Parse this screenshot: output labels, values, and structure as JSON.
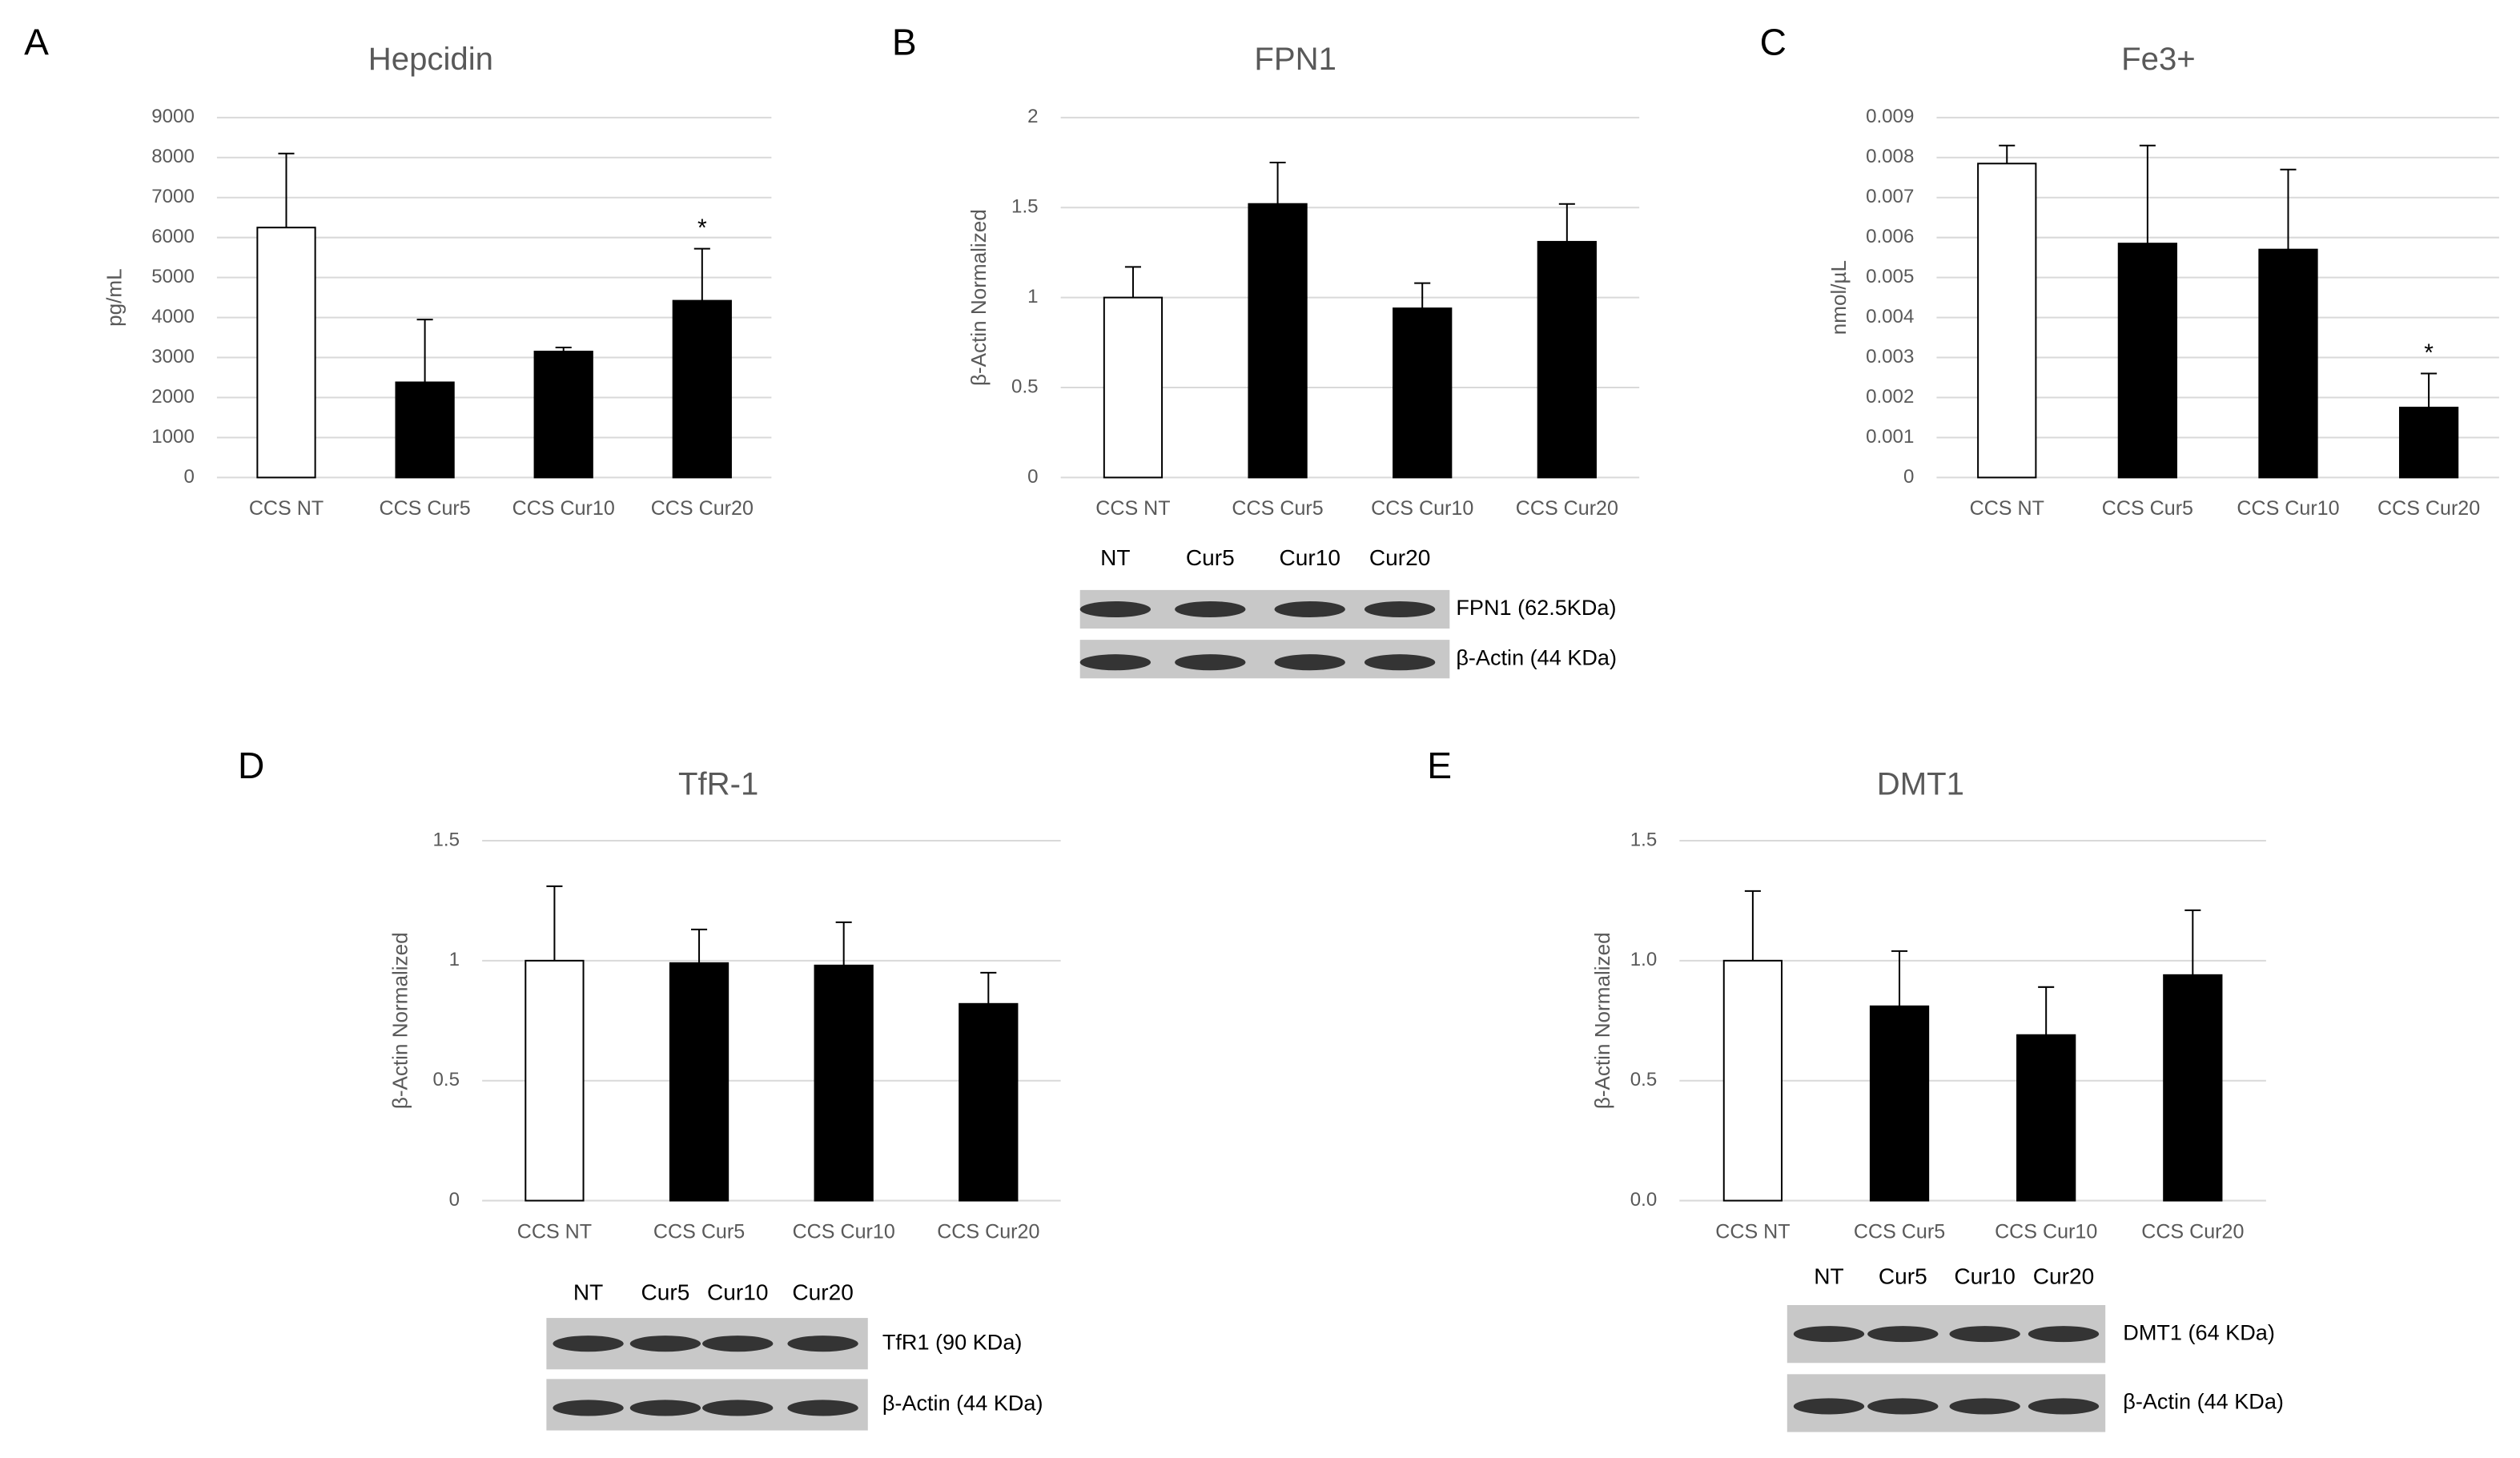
{
  "chart_data": [
    {
      "type": "bar",
      "panel": "A",
      "title": "Hepcidin",
      "ylabel": "pg/mL",
      "categories": [
        "CCS NT",
        "CCS Cur5",
        "CCS Cur10",
        "CCS Cur20"
      ],
      "values": [
        6250,
        2380,
        3150,
        4420
      ],
      "errors": [
        1850,
        1570,
        100,
        1300
      ],
      "colors": [
        "#ffffff",
        "#000000",
        "#000000",
        "#000000"
      ],
      "significance": [
        null,
        null,
        null,
        "*"
      ],
      "ylim": [
        0,
        9000
      ],
      "yticks": [
        0,
        1000,
        2000,
        3000,
        4000,
        5000,
        6000,
        7000,
        8000,
        9000
      ],
      "grid": true
    },
    {
      "type": "bar",
      "panel": "B",
      "title": "FPN1",
      "ylabel": "β-Actin Normalized",
      "categories": [
        "CCS NT",
        "CCS Cur5",
        "CCS Cur10",
        "CCS Cur20"
      ],
      "values": [
        1.0,
        1.52,
        0.94,
        1.31
      ],
      "errors": [
        0.17,
        0.23,
        0.14,
        0.21
      ],
      "colors": [
        "#ffffff",
        "#000000",
        "#000000",
        "#000000"
      ],
      "ylim": [
        0,
        2
      ],
      "yticks": [
        0,
        0.5,
        1,
        1.5,
        2
      ],
      "grid": true,
      "blot": {
        "lanes": [
          "NT",
          "Cur5",
          "Cur10",
          "Cur20"
        ],
        "bands": [
          "FPN1 (62.5KDa)",
          "β-Actin (44 KDa)"
        ]
      }
    },
    {
      "type": "bar",
      "panel": "C",
      "title": "Fe3+",
      "ylabel": "nmol/µL",
      "categories": [
        "CCS NT",
        "CCS Cur5",
        "CCS Cur10",
        "CCS Cur20"
      ],
      "values": [
        0.00785,
        0.00585,
        0.0057,
        0.00175
      ],
      "errors": [
        0.00045,
        0.00245,
        0.002,
        0.00085
      ],
      "colors": [
        "#ffffff",
        "#000000",
        "#000000",
        "#000000"
      ],
      "significance": [
        null,
        null,
        null,
        "*"
      ],
      "ylim": [
        0,
        0.009
      ],
      "yticks": [
        0,
        0.001,
        0.002,
        0.003,
        0.004,
        0.005,
        0.006,
        0.007,
        0.008,
        0.009
      ],
      "grid": true
    },
    {
      "type": "bar",
      "panel": "D",
      "title": "TfR-1",
      "ylabel": "β-Actin Normalized",
      "categories": [
        "CCS NT",
        "CCS Cur5",
        "CCS Cur10",
        "CCS Cur20"
      ],
      "values": [
        1.0,
        0.99,
        0.98,
        0.82
      ],
      "errors": [
        0.31,
        0.14,
        0.18,
        0.13
      ],
      "colors": [
        "#ffffff",
        "#000000",
        "#000000",
        "#000000"
      ],
      "ylim": [
        0,
        1.5
      ],
      "yticks": [
        0,
        0.5,
        1,
        1.5
      ],
      "grid": true,
      "blot": {
        "lanes": [
          "NT",
          "Cur5",
          "Cur10",
          "Cur20"
        ],
        "bands": [
          "TfR1 (90 KDa)",
          "β-Actin (44 KDa)"
        ]
      }
    },
    {
      "type": "bar",
      "panel": "E",
      "title": "DMT1",
      "ylabel": "β-Actin Normalized",
      "categories": [
        "CCS NT",
        "CCS Cur5",
        "CCS Cur10",
        "CCS Cur20"
      ],
      "values": [
        1.0,
        0.81,
        0.69,
        0.94
      ],
      "errors": [
        0.29,
        0.23,
        0.2,
        0.27
      ],
      "colors": [
        "#ffffff",
        "#000000",
        "#000000",
        "#000000"
      ],
      "ylim": [
        0,
        1.5
      ],
      "yticks": [
        {
          "value": 0,
          "label": "0.0"
        },
        0.5,
        {
          "value": 1,
          "label": "1.0"
        },
        1.5
      ],
      "grid": true,
      "blot": {
        "lanes": [
          "NT",
          "Cur5",
          "Cur10",
          "Cur20"
        ],
        "bands": [
          "DMT1 (64 KDa)",
          "β-Actin (44 KDa)"
        ]
      }
    }
  ]
}
